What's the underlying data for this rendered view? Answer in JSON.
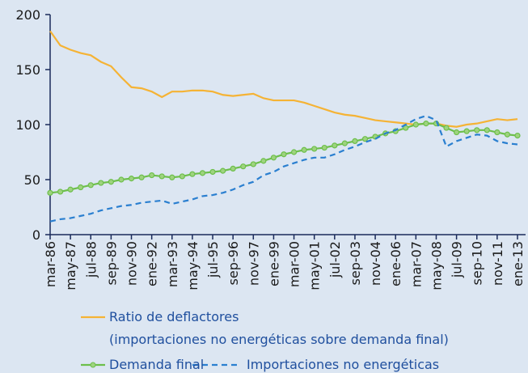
{
  "chart_data": {
    "type": "line",
    "categories": [
      "mar-86",
      null,
      "may-87",
      null,
      "jul-88",
      null,
      "sep-89",
      null,
      "nov-90",
      null,
      "ene-92",
      null,
      "mar-93",
      null,
      "may-94",
      null,
      "jul-95",
      null,
      "sep-96",
      null,
      "nov-97",
      null,
      "ene-99",
      null,
      "mar-00",
      null,
      "may-01",
      null,
      "jul-02",
      null,
      "sep-03",
      null,
      "nov-04",
      null,
      "ene-06",
      null,
      "mar-07",
      null,
      "may-08",
      null,
      "jul-09",
      null,
      "sep-10",
      null,
      "nov-11",
      null,
      "ene-13"
    ],
    "series": [
      {
        "name": "Ratio de deflactores\n(importaciones no energéticas sobre demanda final)",
        "color": "#f5b335",
        "style": "solid",
        "markers": false,
        "values": [
          185,
          172,
          168,
          165,
          163,
          157,
          153,
          143,
          134,
          133,
          130,
          125,
          130,
          130,
          131,
          131,
          130,
          127,
          126,
          127,
          128,
          124,
          122,
          122,
          122,
          120,
          117,
          114,
          111,
          109,
          108,
          106,
          104,
          103,
          102,
          101,
          100,
          101,
          101,
          99,
          98,
          100,
          101,
          103,
          105,
          104,
          105
        ]
      },
      {
        "name": "Demanda final",
        "color": "#6dbf4b",
        "style": "solid",
        "markers": true,
        "values": [
          38,
          39,
          41,
          43,
          45,
          47,
          48,
          50,
          51,
          52,
          54,
          53,
          52,
          53,
          55,
          56,
          57,
          58,
          60,
          62,
          64,
          67,
          70,
          73,
          75,
          77,
          78,
          79,
          81,
          83,
          85,
          87,
          89,
          92,
          94,
          97,
          100,
          101,
          101,
          97,
          93,
          94,
          95,
          95,
          93,
          91,
          90
        ]
      },
      {
        "name": "Importaciones no energéticas",
        "color": "#2a7fd0",
        "style": "dashed",
        "markers": false,
        "values": [
          12,
          14,
          15,
          17,
          19,
          22,
          24,
          26,
          27,
          29,
          30,
          31,
          28,
          30,
          32,
          35,
          36,
          38,
          41,
          45,
          48,
          54,
          57,
          62,
          65,
          68,
          70,
          70,
          73,
          77,
          80,
          84,
          87,
          92,
          95,
          100,
          105,
          108,
          104,
          80,
          85,
          88,
          91,
          90,
          85,
          83,
          82
        ]
      }
    ],
    "ylim": [
      0,
      200
    ],
    "yticks": [
      0,
      50,
      100,
      150,
      200
    ],
    "legend": "bottom"
  }
}
